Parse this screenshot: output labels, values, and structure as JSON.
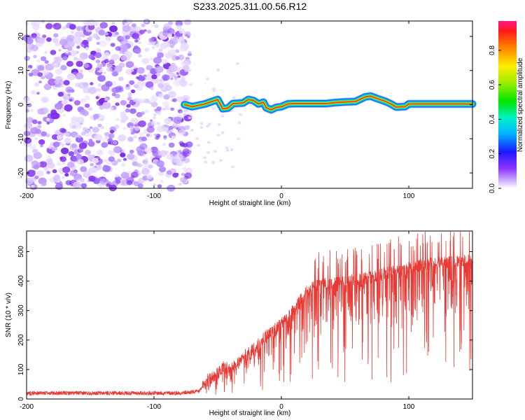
{
  "title": "S233.2025.311.00.56.R12",
  "chart_data": [
    {
      "type": "heatmap",
      "name": "spectrogram",
      "xlabel": "Height of straight line (km)",
      "ylabel": "Frequency (Hz)",
      "xlim": [
        -200,
        150
      ],
      "ylim": [
        -24.5,
        24.5
      ],
      "xticks": [
        -200,
        -100,
        0,
        100
      ],
      "yticks": [
        -20,
        -10,
        0,
        10,
        20
      ],
      "noise_region_x": [
        -200,
        -76
      ],
      "signal_start_x": -76,
      "signal_track": [
        [
          -76,
          0
        ],
        [
          -70,
          -0.6
        ],
        [
          -60,
          0.2
        ],
        [
          -50,
          1.5
        ],
        [
          -46,
          -1.2
        ],
        [
          -42,
          -1.0
        ],
        [
          -38,
          0.3
        ],
        [
          -30,
          0.5
        ],
        [
          -26,
          1.5
        ],
        [
          -22,
          1.2
        ],
        [
          -18,
          0.2
        ],
        [
          -14,
          0.7
        ],
        [
          -12,
          -0.9
        ],
        [
          -8,
          -1.5
        ],
        [
          -4,
          -0.8
        ],
        [
          0,
          -0.6
        ],
        [
          5,
          0.2
        ],
        [
          10,
          0.3
        ],
        [
          35,
          0.3
        ],
        [
          42,
          0.6
        ],
        [
          50,
          0.8
        ],
        [
          58,
          0.9
        ],
        [
          62,
          1.6
        ],
        [
          66,
          2.3
        ],
        [
          70,
          2.5
        ],
        [
          75,
          1.8
        ],
        [
          82,
          0.9
        ],
        [
          86,
          0.2
        ],
        [
          90,
          -0.7
        ],
        [
          97,
          -0.6
        ],
        [
          100,
          0.2
        ],
        [
          150,
          0.2
        ]
      ],
      "colorbar": {
        "label": "Normalized spectral amplitude",
        "ticks": [
          0.0,
          0.2,
          0.4,
          0.6,
          0.8
        ],
        "range": [
          0,
          0.97
        ]
      }
    },
    {
      "type": "line",
      "name": "snr",
      "xlabel": "Height of straight line (km)",
      "ylabel": "SNR (10 * v/v)",
      "xlim": [
        -200,
        150
      ],
      "ylim": [
        0,
        570
      ],
      "xticks": [
        -200,
        -100,
        0,
        100
      ],
      "yticks": [
        0,
        100,
        200,
        300,
        400,
        500
      ],
      "color": "#e83a35",
      "series": [
        {
          "name": "SNR",
          "envelope_points": [
            [
              -200,
              20
            ],
            [
              -80,
              20
            ],
            [
              -65,
              25
            ],
            [
              -58,
              60
            ],
            [
              -50,
              80
            ],
            [
              -45,
              110
            ],
            [
              -40,
              90
            ],
            [
              -35,
              120
            ],
            [
              -20,
              170
            ],
            [
              -10,
              220
            ],
            [
              0,
              250
            ],
            [
              10,
              300
            ],
            [
              20,
              360
            ],
            [
              30,
              385
            ],
            [
              45,
              390
            ],
            [
              60,
              400
            ],
            [
              80,
              420
            ],
            [
              100,
              440
            ],
            [
              120,
              455
            ],
            [
              150,
              465
            ]
          ],
          "spread": 45
        }
      ]
    }
  ]
}
